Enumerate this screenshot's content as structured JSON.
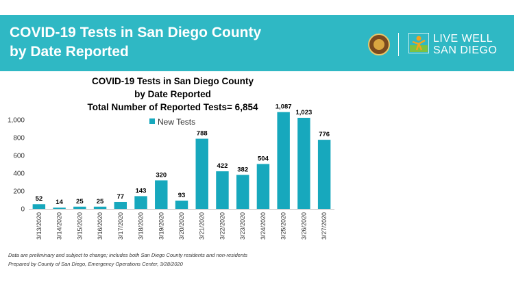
{
  "banner": {
    "title_line1": "COVID-19 Tests in San Diego County",
    "title_line2": "by Date Reported"
  },
  "logo": {
    "text_line1": "LIVE WELL",
    "text_line2": "SAN DIEGO"
  },
  "colors": {
    "banner": "#2fb8c4",
    "bar": "#17a8bd"
  },
  "chart_data": {
    "type": "bar",
    "title_lines": [
      "COVID-19 Tests in San Diego County",
      "by Date Reported",
      "Total Number of Reported Tests= 6,854"
    ],
    "legend": {
      "label": "New Tests",
      "placement": "top-center"
    },
    "categories": [
      "3/13/2020",
      "3/14/2020",
      "3/15/2020",
      "3/16/2020",
      "3/17/2020",
      "3/18/2020",
      "3/19/2020",
      "3/20/2020",
      "3/21/2020",
      "3/22/2020",
      "3/23/2020",
      "3/24/2020",
      "3/25/2020",
      "3/26/2020",
      "3/27/2020"
    ],
    "values": [
      52,
      14,
      25,
      25,
      77,
      143,
      320,
      93,
      788,
      422,
      382,
      504,
      1087,
      1023,
      776
    ],
    "value_labels": [
      "52",
      "14",
      "25",
      "25",
      "77",
      "143",
      "320",
      "93",
      "788",
      "422",
      "382",
      "504",
      "1,087",
      "1,023",
      "776"
    ],
    "ylim": [
      0,
      1000
    ],
    "yticks": [
      0,
      200,
      400,
      600,
      800,
      1000
    ],
    "ytick_labels": [
      "0",
      "200",
      "400",
      "600",
      "800",
      "1,000"
    ],
    "grid": false
  },
  "footnotes": [
    "Data are preliminary and subject to change; includes both San Diego County residents and non-residents",
    "Prepared by County of San Diego, Emergency Operations Center, 3/28/2020"
  ]
}
